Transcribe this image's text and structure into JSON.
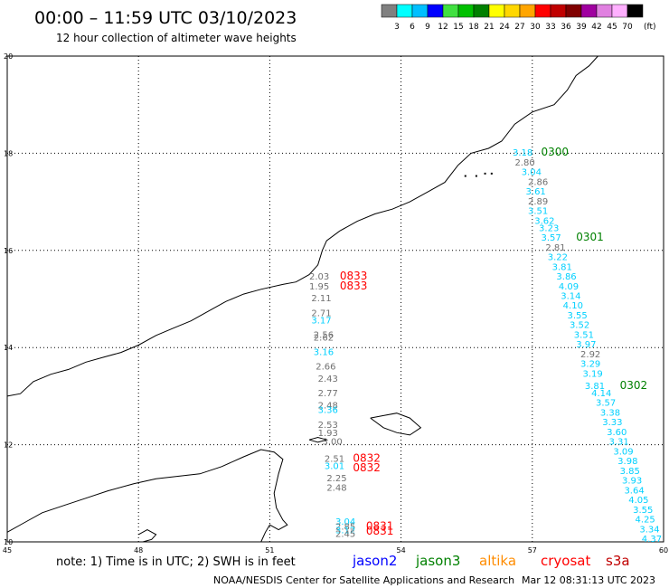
{
  "header": {
    "title": "00:00 – 11:59 UTC 03/10/2023",
    "subtitle": "12 hour collection of altimeter wave heights"
  },
  "colorbar": {
    "unit_label": "(ft)",
    "segments": [
      {
        "color": "#808080",
        "label": "3"
      },
      {
        "color": "#00ffff",
        "label": "6"
      },
      {
        "color": "#00bfff",
        "label": "9"
      },
      {
        "color": "#0000ff",
        "label": "12"
      },
      {
        "color": "#40e040",
        "label": "15"
      },
      {
        "color": "#00c000",
        "label": "18"
      },
      {
        "color": "#008000",
        "label": "21"
      },
      {
        "color": "#ffff00",
        "label": "24"
      },
      {
        "color": "#ffd700",
        "label": "27"
      },
      {
        "color": "#ffa500",
        "label": "30"
      },
      {
        "color": "#ff0000",
        "label": "33"
      },
      {
        "color": "#c00000",
        "label": "36"
      },
      {
        "color": "#800000",
        "label": "39"
      },
      {
        "color": "#a000a0",
        "label": "42"
      },
      {
        "color": "#e080e0",
        "label": "45"
      },
      {
        "color": "#ffb0ff",
        "label": "70"
      },
      {
        "color": "#000000",
        "label": ""
      }
    ]
  },
  "chart_data": {
    "type": "scatter",
    "xlim": [
      45,
      60
    ],
    "ylim": [
      10,
      20
    ],
    "x_ticks": [
      "45",
      "48",
      "51",
      "54",
      "57",
      "60"
    ],
    "y_ticks": [
      "10",
      "12",
      "14",
      "16",
      "18",
      "20"
    ],
    "grid": true,
    "colors": {
      "jason2": "#0000ff",
      "jason3": "#008000",
      "altika": "#ff8c00",
      "cryosat": "#ff0000",
      "s3a": "#c00000",
      "cyan": "#00d0ff",
      "gray": "#707070"
    },
    "series": [
      {
        "name": "jason3",
        "color": "#008000",
        "time_labels": [
          {
            "text": "0300",
            "lon": 57.2,
            "lat": 17.95
          },
          {
            "text": "0301",
            "lon": 58.0,
            "lat": 16.2
          },
          {
            "text": "0302",
            "lon": 59.0,
            "lat": 13.15
          }
        ]
      },
      {
        "name": "cryosat",
        "color": "#ff0000",
        "time_labels": [
          {
            "text": "0833",
            "lon": 52.6,
            "lat": 15.4
          },
          {
            "text": "0833",
            "lon": 52.6,
            "lat": 15.2
          },
          {
            "text": "0832",
            "lon": 52.9,
            "lat": 11.65
          },
          {
            "text": "0832",
            "lon": 52.9,
            "lat": 11.45
          },
          {
            "text": "0831",
            "lon": 53.2,
            "lat": 10.25
          },
          {
            "text": "0831",
            "lon": 53.2,
            "lat": 10.15
          }
        ]
      }
    ],
    "points": [
      {
        "text": "3.18",
        "lon": 56.55,
        "lat": 17.95,
        "c": "cyan"
      },
      {
        "text": "2.80",
        "lon": 56.6,
        "lat": 17.75,
        "c": "gray"
      },
      {
        "text": "3.04",
        "lon": 56.75,
        "lat": 17.55,
        "c": "cyan"
      },
      {
        "text": "2.86",
        "lon": 56.9,
        "lat": 17.35,
        "c": "gray"
      },
      {
        "text": "3.61",
        "lon": 56.85,
        "lat": 17.15,
        "c": "cyan"
      },
      {
        "text": "2.89",
        "lon": 56.9,
        "lat": 16.95,
        "c": "gray"
      },
      {
        "text": "3.51",
        "lon": 56.9,
        "lat": 16.75,
        "c": "cyan"
      },
      {
        "text": "3.62",
        "lon": 57.05,
        "lat": 16.55,
        "c": "cyan"
      },
      {
        "text": "3.23",
        "lon": 57.15,
        "lat": 16.4,
        "c": "cyan"
      },
      {
        "text": "3.57",
        "lon": 57.2,
        "lat": 16.2,
        "c": "cyan"
      },
      {
        "text": "2.81",
        "lon": 57.3,
        "lat": 16.0,
        "c": "gray"
      },
      {
        "text": "3.22",
        "lon": 57.35,
        "lat": 15.8,
        "c": "cyan"
      },
      {
        "text": "3.81",
        "lon": 57.45,
        "lat": 15.6,
        "c": "cyan"
      },
      {
        "text": "3.86",
        "lon": 57.55,
        "lat": 15.4,
        "c": "cyan"
      },
      {
        "text": "4.09",
        "lon": 57.6,
        "lat": 15.2,
        "c": "cyan"
      },
      {
        "text": "3.14",
        "lon": 57.65,
        "lat": 15.0,
        "c": "cyan"
      },
      {
        "text": "4.10",
        "lon": 57.7,
        "lat": 14.8,
        "c": "cyan"
      },
      {
        "text": "3.55",
        "lon": 57.8,
        "lat": 14.6,
        "c": "cyan"
      },
      {
        "text": "3.52",
        "lon": 57.85,
        "lat": 14.4,
        "c": "cyan"
      },
      {
        "text": "3.51",
        "lon": 57.95,
        "lat": 14.2,
        "c": "cyan"
      },
      {
        "text": "3.97",
        "lon": 58.0,
        "lat": 14.0,
        "c": "cyan"
      },
      {
        "text": "2.92",
        "lon": 58.1,
        "lat": 13.8,
        "c": "gray"
      },
      {
        "text": "3.29",
        "lon": 58.1,
        "lat": 13.6,
        "c": "cyan"
      },
      {
        "text": "3.19",
        "lon": 58.15,
        "lat": 13.4,
        "c": "cyan"
      },
      {
        "text": "3.81",
        "lon": 58.2,
        "lat": 13.15,
        "c": "cyan"
      },
      {
        "text": "4.14",
        "lon": 58.35,
        "lat": 13.0,
        "c": "cyan"
      },
      {
        "text": "3.57",
        "lon": 58.45,
        "lat": 12.8,
        "c": "cyan"
      },
      {
        "text": "3.38",
        "lon": 58.55,
        "lat": 12.6,
        "c": "cyan"
      },
      {
        "text": "3.33",
        "lon": 58.6,
        "lat": 12.4,
        "c": "cyan"
      },
      {
        "text": "3.60",
        "lon": 58.7,
        "lat": 12.2,
        "c": "cyan"
      },
      {
        "text": "3.31",
        "lon": 58.75,
        "lat": 12.0,
        "c": "cyan"
      },
      {
        "text": "3.09",
        "lon": 58.85,
        "lat": 11.8,
        "c": "cyan"
      },
      {
        "text": "3.98",
        "lon": 58.95,
        "lat": 11.6,
        "c": "cyan"
      },
      {
        "text": "3.85",
        "lon": 59.0,
        "lat": 11.4,
        "c": "cyan"
      },
      {
        "text": "3.93",
        "lon": 59.05,
        "lat": 11.2,
        "c": "cyan"
      },
      {
        "text": "3.64",
        "lon": 59.1,
        "lat": 11.0,
        "c": "cyan"
      },
      {
        "text": "4.05",
        "lon": 59.2,
        "lat": 10.8,
        "c": "cyan"
      },
      {
        "text": "3.55",
        "lon": 59.3,
        "lat": 10.6,
        "c": "cyan"
      },
      {
        "text": "4.25",
        "lon": 59.35,
        "lat": 10.4,
        "c": "cyan"
      },
      {
        "text": "3.34",
        "lon": 59.45,
        "lat": 10.2,
        "c": "cyan"
      },
      {
        "text": "4.37",
        "lon": 59.5,
        "lat": 10.0,
        "c": "cyan"
      },
      {
        "text": "2.03",
        "lon": 51.9,
        "lat": 15.4,
        "c": "gray"
      },
      {
        "text": "1.95",
        "lon": 51.9,
        "lat": 15.2,
        "c": "gray"
      },
      {
        "text": "2.11",
        "lon": 51.95,
        "lat": 14.95,
        "c": "gray"
      },
      {
        "text": "2.71",
        "lon": 51.95,
        "lat": 14.65,
        "c": "gray"
      },
      {
        "text": "3.17",
        "lon": 51.95,
        "lat": 14.5,
        "c": "cyan"
      },
      {
        "text": "2.56",
        "lon": 52.0,
        "lat": 14.2,
        "c": "gray"
      },
      {
        "text": "2.62",
        "lon": 52.0,
        "lat": 14.14,
        "c": "gray"
      },
      {
        "text": "3.16",
        "lon": 52.0,
        "lat": 13.85,
        "c": "cyan"
      },
      {
        "text": "2.66",
        "lon": 52.05,
        "lat": 13.55,
        "c": "gray"
      },
      {
        "text": "2.43",
        "lon": 52.1,
        "lat": 13.3,
        "c": "gray"
      },
      {
        "text": "2.77",
        "lon": 52.1,
        "lat": 13.0,
        "c": "gray"
      },
      {
        "text": "2.48",
        "lon": 52.1,
        "lat": 12.75,
        "c": "gray"
      },
      {
        "text": "3.36",
        "lon": 52.1,
        "lat": 12.65,
        "c": "cyan"
      },
      {
        "text": "2.53",
        "lon": 52.1,
        "lat": 12.35,
        "c": "gray"
      },
      {
        "text": "1.93",
        "lon": 52.1,
        "lat": 12.18,
        "c": "gray"
      },
      {
        "text": "3.00",
        "lon": 52.2,
        "lat": 12.0,
        "c": "gray"
      },
      {
        "text": "2.51",
        "lon": 52.25,
        "lat": 11.65,
        "c": "gray"
      },
      {
        "text": "3.01",
        "lon": 52.25,
        "lat": 11.5,
        "c": "cyan"
      },
      {
        "text": "2.25",
        "lon": 52.3,
        "lat": 11.25,
        "c": "gray"
      },
      {
        "text": "2.48",
        "lon": 52.3,
        "lat": 11.05,
        "c": "gray"
      },
      {
        "text": "3.04",
        "lon": 52.5,
        "lat": 10.35,
        "c": "cyan"
      },
      {
        "text": "2.85",
        "lon": 52.5,
        "lat": 10.25,
        "c": "gray"
      },
      {
        "text": "3.12",
        "lon": 52.5,
        "lat": 10.18,
        "c": "cyan"
      },
      {
        "text": "2.45",
        "lon": 52.5,
        "lat": 10.1,
        "c": "gray"
      }
    ],
    "coastlines": [
      [
        [
          45,
          13.0
        ],
        [
          45.3,
          13.05
        ],
        [
          45.6,
          13.3
        ],
        [
          46.0,
          13.45
        ],
        [
          46.4,
          13.55
        ],
        [
          46.8,
          13.7
        ],
        [
          47.2,
          13.8
        ],
        [
          47.6,
          13.9
        ],
        [
          48.0,
          14.05
        ],
        [
          48.4,
          14.25
        ],
        [
          48.8,
          14.4
        ],
        [
          49.2,
          14.55
        ],
        [
          49.6,
          14.75
        ],
        [
          50.0,
          14.95
        ],
        [
          50.4,
          15.1
        ],
        [
          50.8,
          15.2
        ],
        [
          51.3,
          15.3
        ],
        [
          51.6,
          15.35
        ],
        [
          51.9,
          15.5
        ],
        [
          52.1,
          15.7
        ],
        [
          52.2,
          16.0
        ],
        [
          52.3,
          16.2
        ],
        [
          52.6,
          16.4
        ],
        [
          53.0,
          16.6
        ],
        [
          53.4,
          16.75
        ],
        [
          53.8,
          16.85
        ],
        [
          54.2,
          17.0
        ],
        [
          54.6,
          17.2
        ],
        [
          55.0,
          17.4
        ],
        [
          55.3,
          17.75
        ],
        [
          55.6,
          18.0
        ],
        [
          56.0,
          18.1
        ],
        [
          56.3,
          18.25
        ],
        [
          56.6,
          18.6
        ],
        [
          57.0,
          18.85
        ],
        [
          57.5,
          19.0
        ],
        [
          57.8,
          19.3
        ],
        [
          58.0,
          19.6
        ],
        [
          58.3,
          19.8
        ],
        [
          58.5,
          20.0
        ]
      ],
      [
        [
          45,
          10.2
        ],
        [
          45.4,
          10.4
        ],
        [
          45.8,
          10.6
        ],
        [
          46.3,
          10.75
        ],
        [
          46.8,
          10.9
        ],
        [
          47.3,
          11.05
        ],
        [
          47.9,
          11.2
        ],
        [
          48.4,
          11.3
        ],
        [
          48.9,
          11.35
        ],
        [
          49.4,
          11.4
        ],
        [
          49.9,
          11.55
        ],
        [
          50.4,
          11.75
        ],
        [
          50.8,
          11.9
        ],
        [
          51.1,
          11.85
        ],
        [
          51.3,
          11.7
        ],
        [
          51.2,
          11.4
        ],
        [
          51.1,
          11.0
        ],
        [
          51.15,
          10.7
        ],
        [
          51.3,
          10.45
        ],
        [
          51.4,
          10.35
        ],
        [
          51.2,
          10.25
        ],
        [
          51.0,
          10.35
        ],
        [
          50.9,
          10.2
        ],
        [
          50.8,
          10.0
        ]
      ],
      [
        [
          53.3,
          12.55
        ],
        [
          53.6,
          12.6
        ],
        [
          53.9,
          12.65
        ],
        [
          54.2,
          12.55
        ],
        [
          54.45,
          12.35
        ],
        [
          54.2,
          12.2
        ],
        [
          53.9,
          12.25
        ],
        [
          53.6,
          12.35
        ],
        [
          53.3,
          12.55
        ]
      ],
      [
        [
          51.9,
          12.1
        ],
        [
          52.1,
          12.15
        ],
        [
          52.3,
          12.1
        ],
        [
          52.1,
          12.05
        ],
        [
          51.9,
          12.1
        ]
      ],
      [
        [
          48.0,
          10.15
        ],
        [
          48.2,
          10.25
        ],
        [
          48.4,
          10.15
        ],
        [
          48.3,
          10.05
        ],
        [
          48.1,
          10.0
        ]
      ]
    ],
    "islets": [
      [
        55.45,
        17.55
      ],
      [
        55.7,
        17.55
      ],
      [
        55.9,
        17.6
      ],
      [
        56.05,
        17.6
      ]
    ]
  },
  "notes": {
    "text": "note: 1) Time is in UTC; 2) SWH is in feet",
    "sats": [
      {
        "label": "jason2",
        "color": "#0000ff"
      },
      {
        "label": "jason3",
        "color": "#008000"
      },
      {
        "label": "altika",
        "color": "#ff8c00"
      },
      {
        "label": "cryosat",
        "color": "#ff0000"
      },
      {
        "label": "s3a",
        "color": "#c00000"
      }
    ]
  },
  "footer": {
    "credit": "NOAA/NESDIS Center for Satellite Applications and Research",
    "timestamp": "Mar 12 08:31:13 UTC 2023"
  }
}
